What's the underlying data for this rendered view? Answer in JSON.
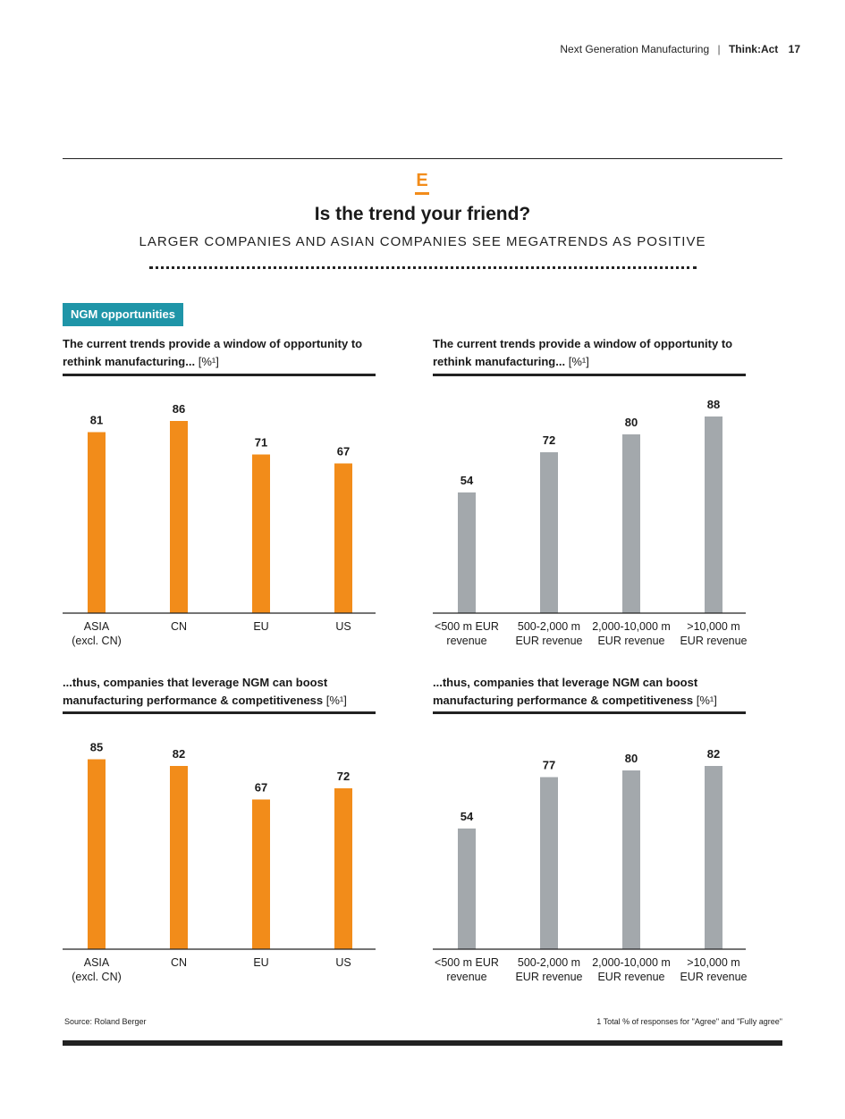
{
  "header": {
    "publication": "Next Generation Manufacturing",
    "separator": "|",
    "brand": "Think:Act",
    "page_number": "17"
  },
  "section": {
    "letter": "E",
    "title": "Is the trend your friend?",
    "subtitle": "LARGER COMPANIES AND ASIAN COMPANIES SEE MEGATRENDS AS POSITIVE",
    "tag": "NGM opportunities"
  },
  "colors": {
    "orange": "#f28c1a",
    "grey": "#a3a8ac",
    "teal": "#1f95a8",
    "text": "#1a1a1a"
  },
  "chart_titles": {
    "top": {
      "text": "The current trends provide a window of opportunity to rethink manufacturing...",
      "unit": "[%¹]"
    },
    "bottom": {
      "text": "...thus, companies that leverage NGM can boost manufacturing performance & competitiveness",
      "unit": "[%¹]"
    }
  },
  "chart_data": [
    {
      "type": "bar",
      "title": "The current trends provide a window of opportunity to rethink manufacturing... [%¹]",
      "categories": [
        [
          "ASIA",
          "(excl. CN)"
        ],
        [
          "CN"
        ],
        [
          "EU"
        ],
        [
          "US"
        ]
      ],
      "values": [
        81,
        86,
        71,
        67
      ],
      "color": "#f28c1a",
      "ylim": [
        0,
        100
      ],
      "grid": false
    },
    {
      "type": "bar",
      "title": "The current trends provide a window of opportunity to rethink manufacturing... [%¹]",
      "categories": [
        [
          "<500 m EUR",
          "revenue"
        ],
        [
          "500-2,000 m",
          "EUR revenue"
        ],
        [
          "2,000-10,000 m",
          "EUR revenue"
        ],
        [
          ">10,000 m",
          "EUR revenue"
        ]
      ],
      "values": [
        54,
        72,
        80,
        88
      ],
      "color": "#a3a8ac",
      "ylim": [
        0,
        100
      ],
      "grid": false
    },
    {
      "type": "bar",
      "title": "...thus, companies that leverage NGM can boost manufacturing performance & competitiveness [%¹]",
      "categories": [
        [
          "ASIA",
          "(excl. CN)"
        ],
        [
          "CN"
        ],
        [
          "EU"
        ],
        [
          "US"
        ]
      ],
      "values": [
        85,
        82,
        67,
        72
      ],
      "color": "#f28c1a",
      "ylim": [
        0,
        100
      ],
      "grid": false
    },
    {
      "type": "bar",
      "title": "...thus, companies that leverage NGM can boost manufacturing performance & competitiveness [%¹]",
      "categories": [
        [
          "<500 m EUR",
          "revenue"
        ],
        [
          "500-2,000 m",
          "EUR revenue"
        ],
        [
          "2,000-10,000 m",
          "EUR revenue"
        ],
        [
          ">10,000 m",
          "EUR revenue"
        ]
      ],
      "values": [
        54,
        77,
        80,
        82
      ],
      "color": "#a3a8ac",
      "ylim": [
        0,
        100
      ],
      "grid": false
    }
  ],
  "footer": {
    "source": "Source: Roland Berger",
    "note": "1 Total % of responses for \"Agree\" and \"Fully agree\""
  }
}
